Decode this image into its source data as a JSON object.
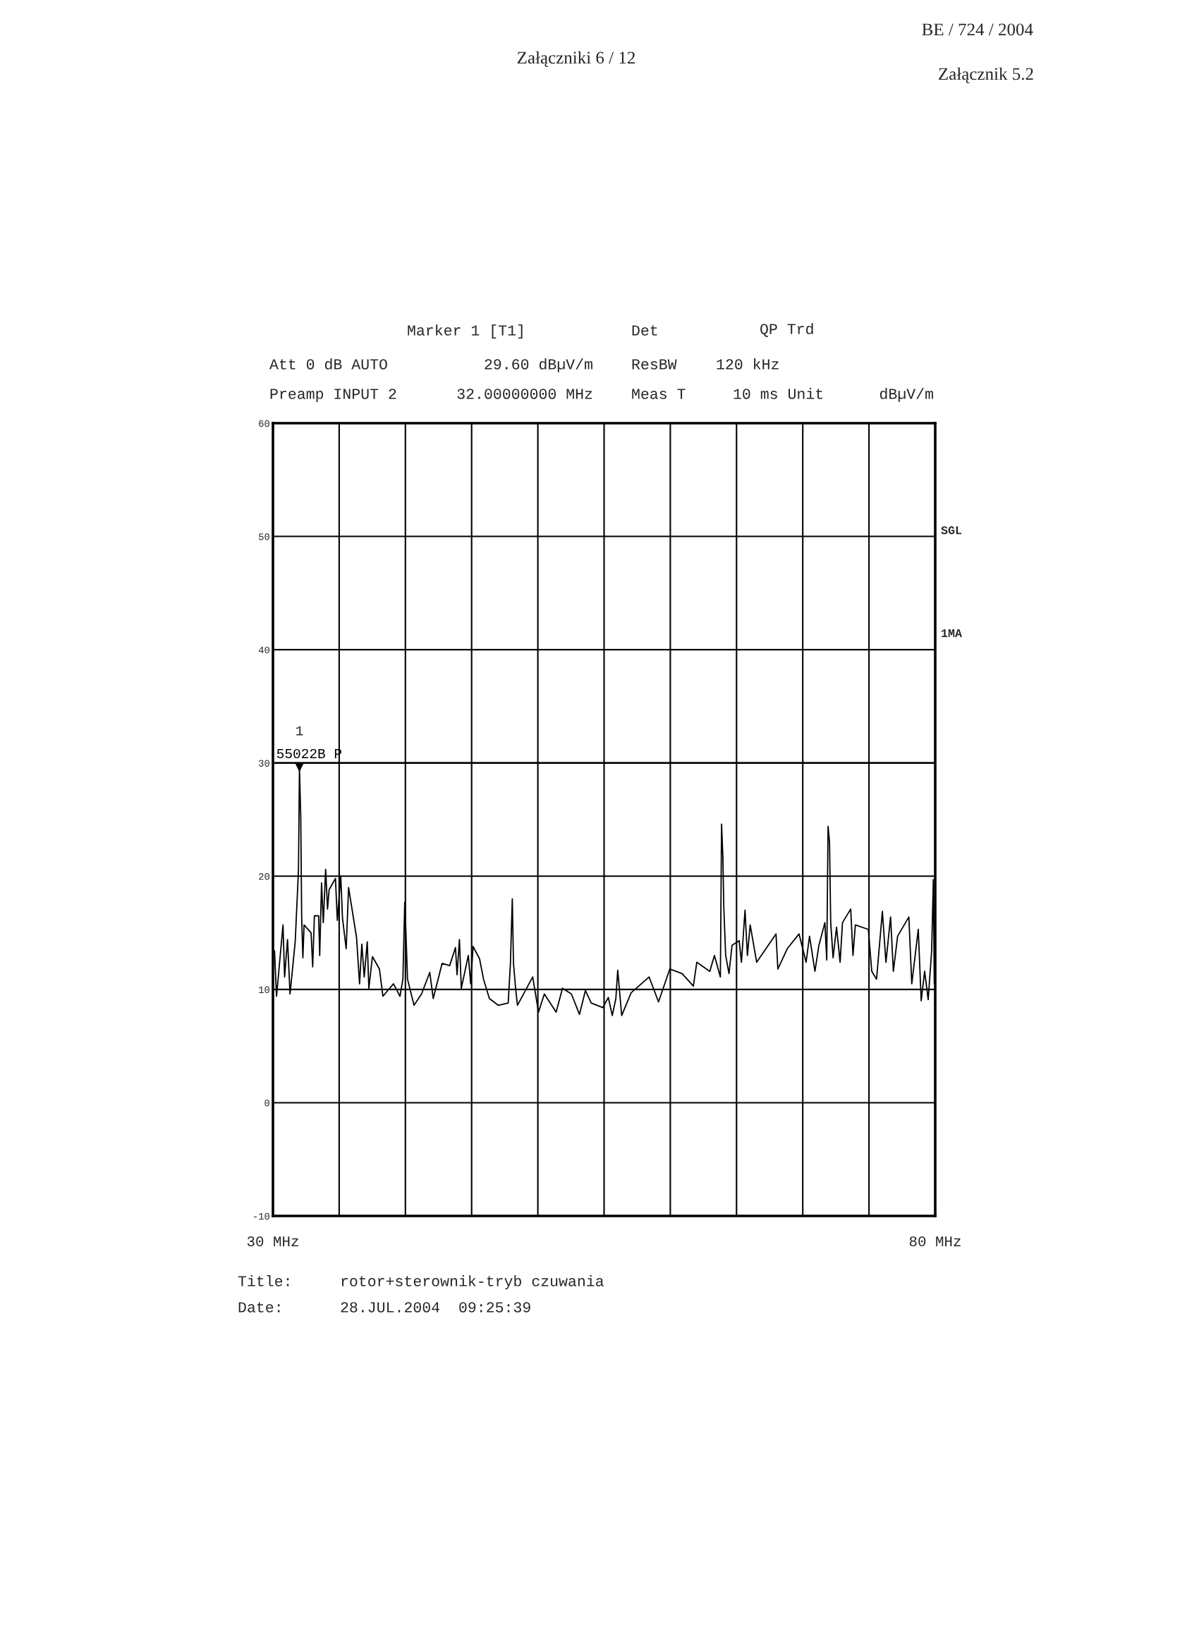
{
  "chart_data": {
    "type": "line",
    "title": "rotor+sterownik-tryb czuwania",
    "annotations": [
      "Załączniki 6 / 12",
      "BE / 724 / 2004",
      "Załącznik 5.2",
      "Marker 1 [T1]",
      "Det",
      "QP Trd",
      "Att 0 dB AUTO",
      "29.60 dBµV/m",
      "ResBW",
      "120 kHz",
      "Preamp INPUT 2",
      "32.00000000 MHz",
      "Meas T",
      "10 ms Unit",
      "dBµV/m",
      "SGL",
      "1MA",
      "Title:",
      "Date:",
      "28.JUL.2004  09:25:39",
      {
        "text": "1",
        "x": 32,
        "y": 29.6
      }
    ],
    "x": [
      30.12,
      30.27,
      30.76,
      30.88,
      31.1,
      31.29,
      31.68,
      31.93,
      32.0,
      32.1,
      32.17,
      32.26,
      32.35,
      32.88,
      33.0,
      33.13,
      33.45,
      33.53,
      33.67,
      33.8,
      33.98,
      34.12,
      34.24,
      34.72,
      34.86,
      35.12,
      35.25,
      35.53,
      35.71,
      36.31,
      36.54,
      36.71,
      36.89,
      37.12,
      37.24,
      37.51,
      38.04,
      38.3,
      39.1,
      39.59,
      39.81,
      39.95,
      40.02,
      40.16,
      40.65,
      41.22,
      41.84,
      42.1,
      42.77,
      43.34,
      43.78,
      43.9,
      44.08,
      44.22,
      44.75,
      44.93,
      45.11,
      45.6,
      45.9,
      46.34,
      47.01,
      47.76,
      47.93,
      48.07,
      48.16,
      48.32,
      48.46,
      49.61,
      50.05,
      50.49,
      51.38,
      51.86,
      52.53,
      53.14,
      53.59,
      54.03,
      54.91,
      55.32,
      55.62,
      55.89,
      56.03,
      56.33,
      57.04,
      58.4,
      59.11,
      59.96,
      60.89,
      61.74,
      62.0,
      62.98,
      63.33,
      63.78,
      63.87,
      63.97,
      64.04,
      64.18,
      64.43,
      64.66,
      65.2,
      65.37,
      65.64,
      65.82,
      66.03,
      66.52,
      67.98,
      68.12,
      68.83,
      69.72,
      70.25,
      70.51,
      70.92,
      71.22,
      71.67,
      71.81,
      71.91,
      72.02,
      72.11,
      72.29,
      72.55,
      72.82,
      73.0,
      73.62,
      73.79,
      73.97,
      74.95,
      75.21,
      75.57,
      76.01,
      76.28,
      76.63,
      76.84,
      77.16,
      78.01,
      78.23,
      78.72,
      78.94,
      79.2,
      79.47,
      79.73,
      79.86,
      79.93
    ],
    "series": [
      {
        "color": "#000000",
        "values": [
          13.4,
          9.4,
          15.7,
          11.1,
          14.4,
          9.6,
          14.2,
          20.6,
          29.6,
          25.2,
          16.3,
          12.8,
          15.7,
          15.0,
          12.0,
          16.5,
          16.5,
          13.0,
          19.4,
          15.9,
          20.6,
          17.1,
          18.8,
          19.8,
          16.1,
          20.0,
          16.3,
          13.6,
          19.0,
          14.6,
          10.5,
          14.0,
          11.1,
          14.2,
          10.1,
          12.9,
          11.8,
          9.4,
          10.5,
          9.4,
          10.9,
          17.7,
          15.7,
          10.9,
          8.6,
          9.6,
          11.5,
          9.2,
          12.3,
          12.1,
          13.7,
          11.3,
          14.4,
          10.1,
          13.0,
          10.5,
          13.8,
          12.7,
          10.9,
          9.2,
          8.6,
          8.8,
          12.3,
          18.0,
          12.3,
          10.1,
          8.6,
          11.1,
          8.0,
          9.6,
          8.0,
          10.1,
          9.6,
          7.8,
          9.9,
          8.8,
          8.4,
          9.3,
          7.7,
          9.2,
          11.7,
          7.7,
          9.7,
          11.1,
          8.9,
          11.8,
          11.4,
          10.3,
          12.4,
          11.6,
          13.0,
          11.1,
          24.6,
          21.6,
          17.2,
          13.0,
          11.4,
          13.9,
          14.3,
          12.4,
          17.0,
          13.0,
          15.7,
          12.4,
          14.9,
          11.8,
          13.6,
          14.9,
          12.4,
          14.7,
          11.6,
          13.9,
          15.9,
          12.6,
          24.4,
          23.0,
          15.9,
          12.8,
          15.5,
          12.4,
          15.9,
          17.1,
          13.0,
          15.7,
          15.3,
          11.6,
          10.9,
          16.9,
          12.4,
          16.4,
          11.6,
          14.7,
          16.4,
          10.5,
          15.3,
          9.0,
          11.6,
          9.1,
          13.4,
          19.7,
          10.5
        ]
      }
    ],
    "xlim": [
      30,
      80
    ],
    "xticks": [
      {
        "value": 30,
        "label": "30 MHz"
      },
      {
        "value": 35,
        "label": null
      },
      {
        "value": 40,
        "label": null
      },
      {
        "value": 45,
        "label": null
      },
      {
        "value": 50,
        "label": null
      },
      {
        "value": 55,
        "label": null
      },
      {
        "value": 60,
        "label": null
      },
      {
        "value": 65,
        "label": null
      },
      {
        "value": 70,
        "label": null
      },
      {
        "value": 75,
        "label": null
      },
      {
        "value": 80,
        "label": "80 MHz"
      }
    ],
    "ylim": [
      -10,
      60
    ],
    "yticks": [
      -10,
      0,
      10,
      20,
      30,
      40,
      50,
      60
    ],
    "grid": true,
    "line_style": "solid",
    "ref_lines": [
      {
        "axis": "y",
        "value": 30,
        "label": "55022B P",
        "color": "#000000"
      }
    ]
  }
}
